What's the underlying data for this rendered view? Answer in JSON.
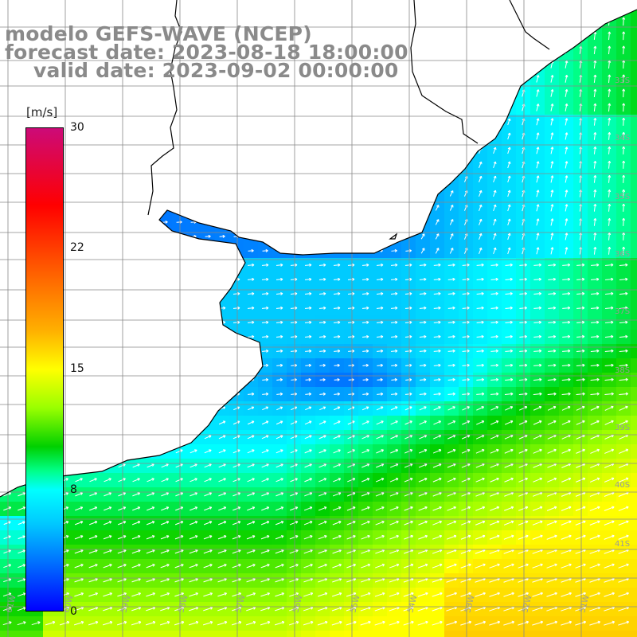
{
  "title": {
    "model": "modelo GEFS-WAVE (NCEP)",
    "forecast": "forecast date: 2023-08-18 18:00:00",
    "valid": "valid date: 2023-09-02 00:00:00"
  },
  "colorbar": {
    "unit": "[m/s]",
    "ticks": [
      "30",
      "22",
      "15",
      "8",
      "0"
    ],
    "tick_values": [
      30,
      22,
      15,
      8,
      0
    ],
    "min": 0,
    "max": 30
  },
  "map": {
    "lat_labels": [
      "33S",
      "34S",
      "35S",
      "36S",
      "37S",
      "38S",
      "39S",
      "40S",
      "41S"
    ],
    "lon_labels": [
      "61W",
      "60W",
      "59W",
      "58W",
      "57W",
      "56W",
      "55W",
      "54W",
      "53W",
      "52W",
      "51W"
    ],
    "grid": true,
    "land_color": "#ffffff",
    "coast_color": "#000000",
    "arrow_color": "#ffffff",
    "field": "wind speed with direction arrows"
  }
}
